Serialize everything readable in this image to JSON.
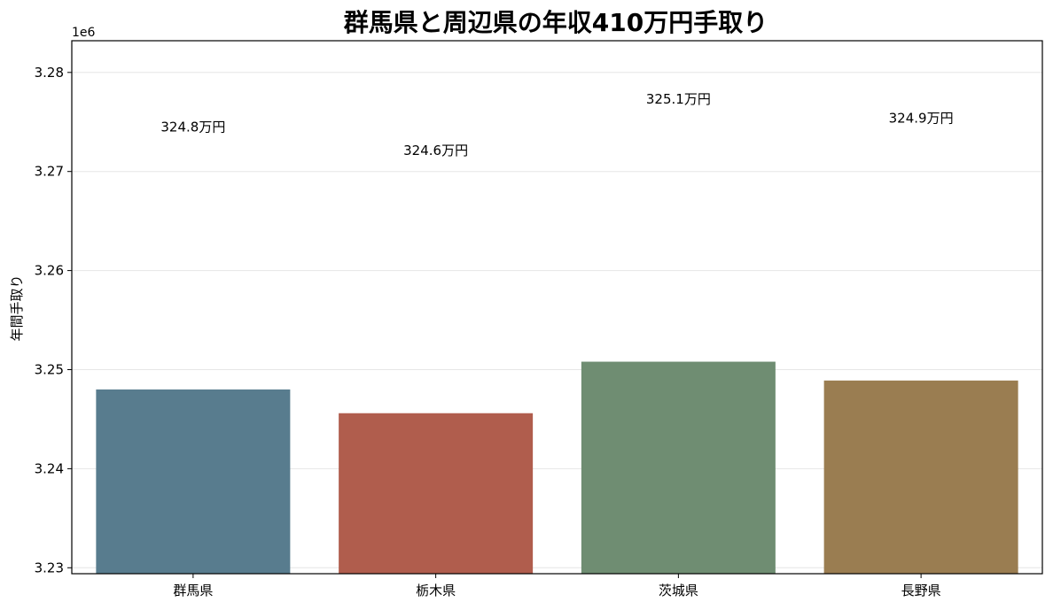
{
  "chart_data": {
    "type": "bar",
    "title": "群馬県と周辺県の年収410万円手取り",
    "xlabel": "",
    "ylabel": "年間手取り",
    "y_offset_label": "1e6",
    "categories": [
      "群馬県",
      "栃木県",
      "茨城県",
      "長野県"
    ],
    "values": [
      3248000,
      3245600,
      3250800,
      3248900
    ],
    "data_labels": [
      "324.8万円",
      "324.6万円",
      "325.1万円",
      "324.9万円"
    ],
    "label_values": [
      3274500,
      3272100,
      3277300,
      3275400
    ],
    "colors": [
      "#587c8e",
      "#b05d4d",
      "#6f8d72",
      "#9a7d51"
    ],
    "ylim": [
      3229400,
      3283200
    ],
    "yticks": [
      3230000,
      3240000,
      3250000,
      3260000,
      3270000,
      3280000
    ],
    "ytick_labels": [
      "3.23",
      "3.24",
      "3.25",
      "3.26",
      "3.27",
      "3.28"
    ],
    "grid": true,
    "legend": "none"
  }
}
